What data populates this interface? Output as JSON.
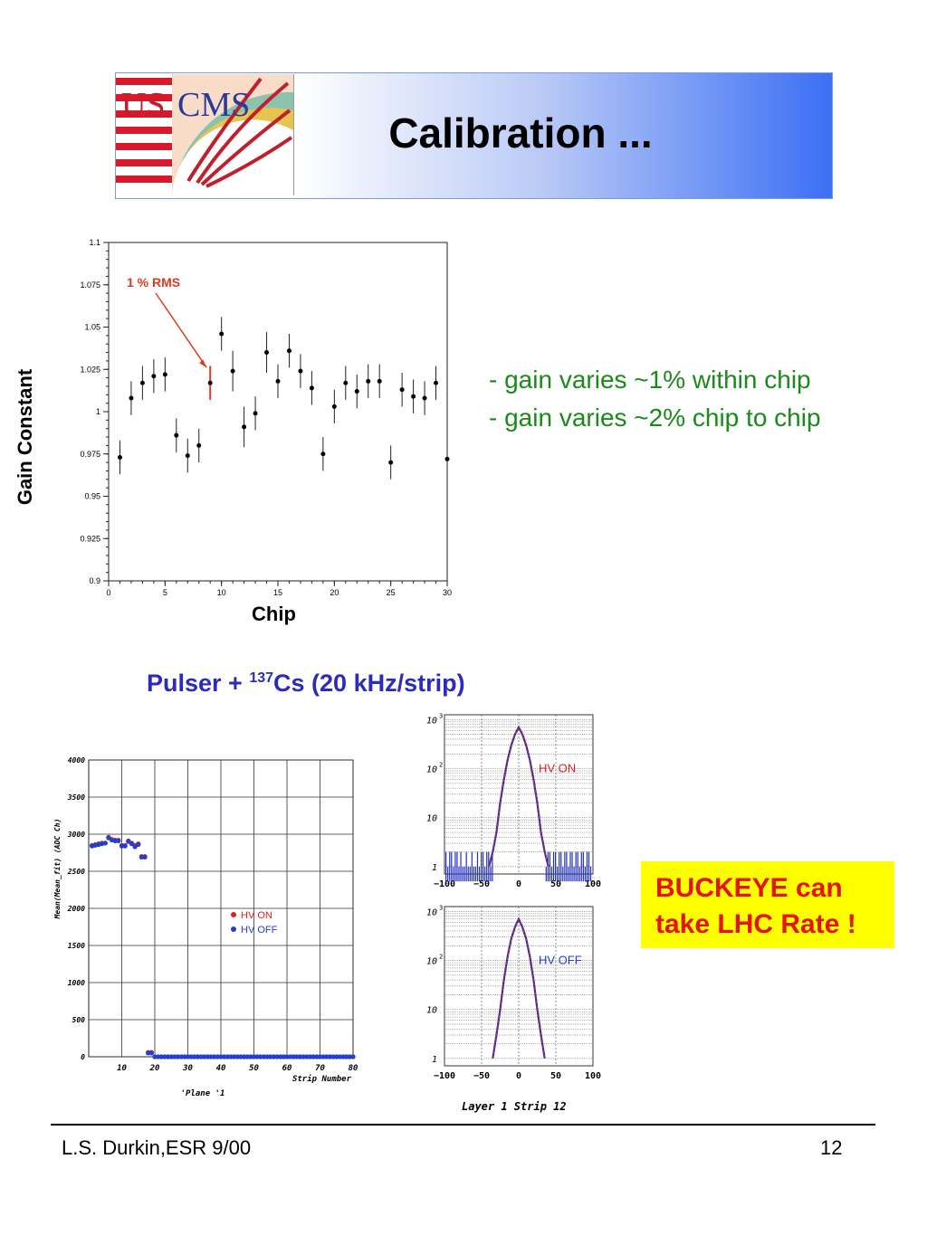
{
  "header": {
    "title": "Calibration ...",
    "logo_text_us": "US",
    "logo_text_cms": "CMS"
  },
  "top_plot": {
    "ylabel": "Gain Constant",
    "xlabel": "Chip",
    "annotation": "1 % RMS",
    "annotation_color": "#e03a1e"
  },
  "notes": {
    "line1": "- gain varies ~1% within chip",
    "line2": "- gain varies ~2% chip to chip",
    "color": "#1a8a1a"
  },
  "section_title": {
    "prefix": "Pulser + ",
    "superscript": "137",
    "suffix": "Cs (20 kHz/strip)",
    "color": "#2b2bbd"
  },
  "strip_plot": {
    "ylabel": "Mean(Mean_fit) (ADC Ch)",
    "xlabel": "Strip Number",
    "caption": "'Plane '1",
    "legend": [
      "HV ON",
      "HV OFF"
    ]
  },
  "hist_plots": {
    "top_label": "HV ON",
    "bottom_label": "HV OFF",
    "caption": "Layer 1 Strip 12"
  },
  "callout": {
    "line1": "BUCKEYE can",
    "line2": "take LHC Rate !"
  },
  "footer": {
    "left": "L.S. Durkin,ESR 9/00",
    "page": "12"
  },
  "chart_data": [
    {
      "type": "scatter",
      "title": "",
      "xlabel": "Chip",
      "ylabel": "Gain Constant",
      "xlim": [
        0,
        30
      ],
      "ylim": [
        0.9,
        1.1
      ],
      "xticks": [
        0,
        5,
        10,
        15,
        20,
        25,
        30
      ],
      "yticks": [
        0.9,
        0.925,
        0.95,
        0.975,
        1,
        1.025,
        1.05,
        1.075,
        1.1
      ],
      "annotations": [
        "1 % RMS"
      ],
      "x": [
        1,
        2,
        3,
        4,
        5,
        6,
        7,
        8,
        9,
        10,
        11,
        12,
        13,
        14,
        15,
        16,
        17,
        18,
        19,
        20,
        21,
        22,
        23,
        24,
        25,
        26,
        27,
        28,
        29,
        30
      ],
      "y": [
        0.973,
        1.008,
        1.017,
        1.021,
        1.022,
        0.986,
        0.974,
        0.98,
        1.017,
        1.046,
        1.024,
        0.991,
        0.999,
        1.035,
        1.018,
        1.036,
        1.024,
        1.014,
        0.975,
        1.003,
        1.017,
        1.012,
        1.018,
        1.018,
        0.97,
        1.013,
        1.009,
        1.008,
        1.017,
        0.972
      ],
      "err": [
        0.01,
        0.01,
        0.01,
        0.01,
        0.01,
        0.01,
        0.01,
        0.01,
        0.01,
        0.01,
        0.012,
        0.012,
        0.01,
        0.012,
        0.01,
        0.01,
        0.01,
        0.01,
        0.01,
        0.01,
        0.01,
        0.01,
        0.01,
        0.01,
        0.01,
        0.01,
        0.01,
        0.01,
        0.01,
        0.008
      ]
    },
    {
      "type": "scatter",
      "title": "",
      "xlabel": "Strip Number",
      "ylabel": "Mean(Mean_fit) (ADC Ch)",
      "xlim": [
        0,
        80
      ],
      "ylim": [
        0,
        4000
      ],
      "xticks": [
        10,
        20,
        30,
        40,
        50,
        60,
        70,
        80
      ],
      "yticks": [
        0,
        500,
        1000,
        1500,
        2000,
        2500,
        3000,
        3500,
        4000
      ],
      "series": [
        {
          "name": "HV ON",
          "color": "#e02020",
          "x": [
            1,
            2,
            3,
            4,
            5,
            6,
            7,
            8,
            9,
            10,
            11,
            12,
            13,
            14,
            15,
            16,
            17,
            18,
            19
          ],
          "y": [
            2850,
            2860,
            2870,
            2880,
            2880,
            2960,
            2930,
            2920,
            2920,
            2850,
            2850,
            2910,
            2880,
            2850,
            2870,
            2700,
            2700,
            60,
            60
          ]
        },
        {
          "name": "HV OFF",
          "color": "#2040d0",
          "x": [
            1,
            2,
            3,
            4,
            5,
            6,
            7,
            8,
            9,
            10,
            11,
            12,
            13,
            14,
            15,
            16,
            17,
            18,
            19
          ],
          "y": [
            2840,
            2850,
            2860,
            2870,
            2880,
            2950,
            2920,
            2910,
            2910,
            2840,
            2840,
            2900,
            2870,
            2830,
            2860,
            2690,
            2690,
            50,
            50
          ]
        }
      ],
      "tail_value": 0
    },
    {
      "type": "line",
      "title": "HV ON",
      "xlim": [
        -100,
        100
      ],
      "ylog": true,
      "yticks": [
        "1",
        "10",
        "10^2",
        "10^3"
      ],
      "xticks": [
        -100,
        -50,
        0,
        50,
        100
      ],
      "x": [
        -40,
        -35,
        -30,
        -25,
        -20,
        -15,
        -10,
        -5,
        0,
        5,
        10,
        15,
        20,
        25,
        30,
        35,
        40
      ],
      "y": [
        1,
        2,
        5,
        20,
        60,
        150,
        300,
        500,
        700,
        500,
        300,
        150,
        60,
        20,
        5,
        2,
        1
      ]
    },
    {
      "type": "line",
      "title": "HV OFF",
      "xlim": [
        -100,
        100
      ],
      "ylog": true,
      "yticks": [
        "1",
        "10",
        "10^2",
        "10^3"
      ],
      "xticks": [
        -100,
        -50,
        0,
        50,
        100
      ],
      "x": [
        -35,
        -30,
        -25,
        -20,
        -15,
        -10,
        -5,
        0,
        5,
        10,
        15,
        20,
        25,
        30,
        35
      ],
      "y": [
        1,
        3,
        10,
        40,
        120,
        280,
        480,
        700,
        480,
        280,
        120,
        40,
        10,
        3,
        1
      ],
      "caption": "Layer 1 Strip 12"
    }
  ]
}
